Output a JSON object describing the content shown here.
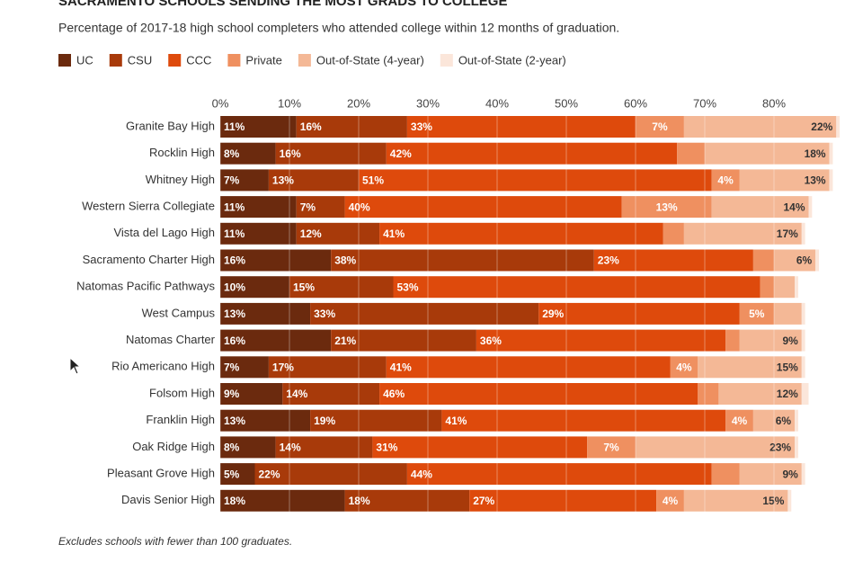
{
  "chart_data": {
    "type": "stacked-bar-horizontal",
    "title": "SACRAMENTO SCHOOLS SENDING THE MOST GRADS TO COLLEGE",
    "subtitle": "Percentage of 2017-18 high school completers who attended college within 12 months of graduation.",
    "note": "Excludes schools with fewer than 100 graduates.",
    "categories": [
      "Granite Bay High",
      "Rocklin High",
      "Whitney High",
      "Western Sierra Collegiate",
      "Vista del Lago High",
      "Sacramento Charter High",
      "Natomas Pacific Pathways",
      "West Campus",
      "Natomas Charter",
      "Rio Americano High",
      "Folsom High",
      "Franklin High",
      "Oak Ridge High",
      "Pleasant Grove High",
      "Davis Senior High"
    ],
    "xlim": [
      0,
      90
    ],
    "xticks": [
      {
        "value": 0,
        "label": "0%"
      },
      {
        "value": 10,
        "label": "10%"
      },
      {
        "value": 20,
        "label": "20%"
      },
      {
        "value": 30,
        "label": "30%"
      },
      {
        "value": 40,
        "label": "40%"
      },
      {
        "value": 50,
        "label": "50%"
      },
      {
        "value": 60,
        "label": "60%"
      },
      {
        "value": 70,
        "label": "70%"
      },
      {
        "value": 80,
        "label": "80%"
      }
    ],
    "grid": true,
    "series": [
      {
        "name": "UC",
        "color": "#6b2a0e",
        "values": [
          11,
          8,
          7,
          11,
          11,
          16,
          10,
          13,
          16,
          7,
          9,
          13,
          8,
          5,
          18
        ],
        "value_labels": [
          "11%",
          "8%",
          "7%",
          "11%",
          "11%",
          "16%",
          "10%",
          "13%",
          "16%",
          "7%",
          "9%",
          "13%",
          "8%",
          "5%",
          "18%"
        ]
      },
      {
        "name": "CSU",
        "color": "#a83a0a",
        "values": [
          16,
          16,
          13,
          7,
          12,
          38,
          15,
          33,
          21,
          17,
          14,
          19,
          14,
          22,
          18
        ],
        "value_labels": [
          "16%",
          "16%",
          "13%",
          "7%",
          "12%",
          "38%",
          "15%",
          "33%",
          "21%",
          "17%",
          "14%",
          "19%",
          "14%",
          "22%",
          "18%"
        ]
      },
      {
        "name": "CCC",
        "color": "#de4a0c",
        "values": [
          33,
          42,
          51,
          40,
          41,
          23,
          53,
          29,
          36,
          41,
          46,
          41,
          31,
          44,
          27
        ],
        "value_labels": [
          "33%",
          "42%",
          "51%",
          "40%",
          "41%",
          "23%",
          "53%",
          "29%",
          "36%",
          "41%",
          "46%",
          "41%",
          "31%",
          "44%",
          "27%"
        ]
      },
      {
        "name": "Private",
        "color": "#ef9060",
        "values": [
          7,
          4,
          4,
          13,
          3,
          3,
          2,
          5,
          2,
          4,
          3,
          4,
          7,
          4,
          4
        ],
        "value_labels": [
          "7%",
          null,
          "4%",
          "13%",
          null,
          null,
          null,
          "5%",
          null,
          "4%",
          null,
          "4%",
          "7%",
          null,
          "4%"
        ]
      },
      {
        "name": "Out-of-State (4-year)",
        "color": "#f4b896",
        "values": [
          22,
          18,
          13,
          14,
          17,
          6,
          3,
          4,
          9,
          15,
          12,
          6,
          23,
          9,
          15
        ],
        "value_labels": [
          "22%",
          "18%",
          "13%",
          "14%",
          "17%",
          "6%",
          null,
          null,
          "9%",
          "15%",
          "12%",
          "6%",
          "23%",
          "9%",
          "15%"
        ]
      },
      {
        "name": "Out-of-State (2-year)",
        "color": "#fbe6da",
        "values": [
          0.5,
          0.5,
          0.5,
          0.5,
          0.5,
          0.5,
          0.5,
          0.5,
          0.5,
          0.5,
          1,
          0.5,
          0.5,
          0.5,
          0.5
        ]
      }
    ]
  }
}
